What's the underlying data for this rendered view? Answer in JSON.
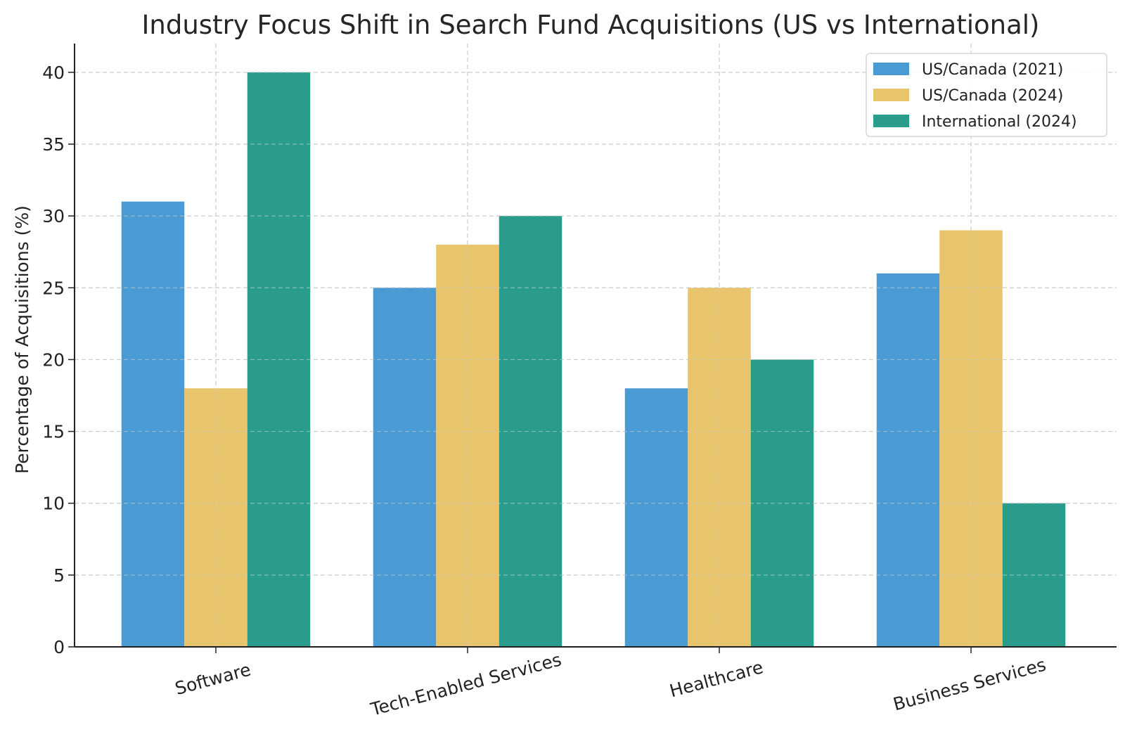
{
  "chart_data": {
    "type": "bar",
    "title": "Industry Focus Shift in Search Fund Acquisitions (US vs International)",
    "xlabel": "",
    "ylabel": "Percentage of Acquisitions (%)",
    "ylim": [
      0,
      42
    ],
    "yticks": [
      0,
      5,
      10,
      15,
      20,
      25,
      30,
      35,
      40
    ],
    "grid": true,
    "legend_position": "top-right",
    "categories": [
      "Software",
      "Tech-Enabled Services",
      "Healthcare",
      "Business Services"
    ],
    "series": [
      {
        "name": "US/Canada (2021)",
        "color": "#4a9bd4",
        "values": [
          31,
          25,
          18,
          26
        ]
      },
      {
        "name": "US/Canada (2024)",
        "color": "#e8c46c",
        "values": [
          18,
          28,
          25,
          29
        ]
      },
      {
        "name": "International (2024)",
        "color": "#2a9c8c",
        "values": [
          40,
          30,
          20,
          10
        ]
      }
    ]
  }
}
